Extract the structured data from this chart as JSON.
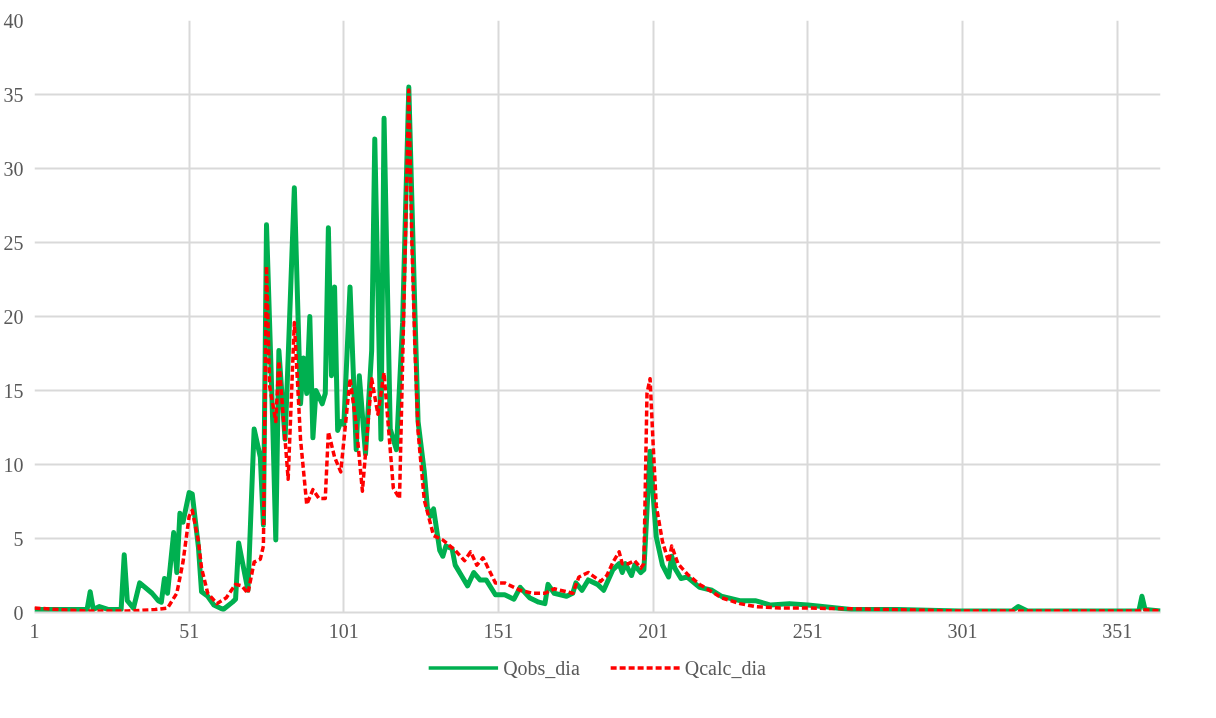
{
  "chart_data": {
    "type": "line",
    "xlim": [
      1,
      365
    ],
    "xticks": [
      1,
      51,
      101,
      151,
      201,
      251,
      301,
      351
    ],
    "ylim": [
      0,
      40
    ],
    "yticks": [
      0,
      5,
      10,
      15,
      20,
      25,
      30,
      35,
      40
    ],
    "grid": true,
    "legend": "bottom",
    "marker": "none",
    "series": [
      {
        "name": "Qobs_dia",
        "color": "#00b050",
        "line_style": "solid",
        "x": [
          1,
          18,
          19,
          20,
          22,
          25,
          29,
          30,
          31,
          33,
          35,
          39,
          41,
          42,
          43,
          44,
          46,
          47,
          48,
          49,
          51,
          52,
          54,
          55,
          57,
          59,
          62,
          65,
          66,
          67,
          70,
          72,
          74,
          75,
          76,
          78,
          79,
          80,
          82,
          83,
          85,
          87,
          88,
          89,
          90,
          91,
          92,
          94,
          95,
          96,
          97,
          98,
          99,
          100,
          101,
          103,
          105,
          106,
          108,
          110,
          111,
          113,
          114,
          116,
          118,
          120,
          122,
          124,
          125,
          127,
          128,
          129,
          130,
          132,
          133,
          134,
          136,
          137,
          139,
          141,
          143,
          145,
          147,
          150,
          153,
          155,
          156,
          158,
          161,
          164,
          166,
          167,
          169,
          173,
          175,
          176,
          178,
          180,
          183,
          185,
          188,
          190,
          191,
          192,
          194,
          195,
          197,
          198,
          200,
          201,
          202,
          204,
          206,
          207,
          208,
          210,
          212,
          216,
          220,
          223,
          229,
          234,
          239,
          245,
          251,
          265,
          280,
          300,
          317,
          319,
          322,
          340,
          358,
          359,
          360,
          365
        ],
        "values": [
          0.2,
          0.2,
          1.4,
          0.2,
          0.4,
          0.2,
          0.2,
          3.9,
          0.8,
          0.3,
          2.0,
          1.3,
          0.8,
          0.7,
          2.3,
          1.3,
          5.4,
          2.7,
          6.7,
          6.1,
          8.1,
          8.0,
          4.4,
          1.4,
          1.1,
          0.5,
          0.2,
          0.7,
          0.9,
          4.7,
          1.5,
          12.4,
          10.5,
          5.9,
          26.2,
          12.9,
          4.9,
          17.7,
          11.7,
          17.2,
          28.7,
          14.1,
          17.2,
          14.8,
          20.0,
          11.8,
          15.0,
          14.1,
          14.8,
          26.0,
          16.0,
          22.0,
          12.3,
          12.9,
          12.7,
          22.0,
          11.0,
          16.0,
          10.7,
          17.7,
          32.0,
          11.7,
          33.4,
          12.4,
          11.0,
          19.6,
          35.5,
          20.1,
          12.9,
          9.5,
          7.1,
          6.5,
          7.0,
          4.2,
          3.8,
          4.5,
          4.3,
          3.2,
          2.5,
          1.8,
          2.7,
          2.2,
          2.2,
          1.2,
          1.2,
          1.0,
          0.9,
          1.7,
          1.0,
          0.7,
          0.6,
          1.9,
          1.3,
          1.1,
          1.3,
          2.0,
          1.5,
          2.2,
          1.9,
          1.5,
          2.9,
          3.3,
          2.7,
          3.3,
          2.5,
          3.2,
          2.7,
          2.9,
          10.9,
          7.9,
          5.1,
          3.2,
          2.4,
          3.8,
          3.0,
          2.3,
          2.4,
          1.7,
          1.5,
          1.1,
          0.8,
          0.8,
          0.5,
          0.6,
          0.5,
          0.2,
          0.2,
          0.1,
          0.1,
          0.4,
          0.1,
          0.1,
          0.1,
          1.1,
          0.2,
          0.1
        ]
      },
      {
        "name": "Qcalc_dia",
        "color": "#ff0000",
        "line_style": "dashed",
        "x": [
          1,
          9,
          18,
          31,
          40,
          44,
          47,
          49,
          51,
          52,
          54,
          55,
          57,
          60,
          63,
          66,
          68,
          70,
          72,
          74,
          75,
          76,
          77,
          79,
          80,
          82,
          83,
          85,
          87,
          89,
          91,
          93,
          95,
          96,
          98,
          100,
          103,
          105,
          107,
          110,
          112,
          114,
          117,
          119,
          122,
          123,
          124,
          125,
          127,
          130,
          133,
          137,
          140,
          142,
          144,
          146,
          150,
          153,
          158,
          162,
          166,
          169,
          175,
          177,
          180,
          184,
          186,
          188,
          190,
          191,
          193,
          195,
          197,
          198,
          199,
          200,
          201,
          202,
          204,
          206,
          207,
          209,
          212,
          216,
          220,
          223,
          229,
          234,
          242,
          251,
          278,
          300,
          358,
          359,
          365
        ],
        "values": [
          0.3,
          0.2,
          0.1,
          0.1,
          0.2,
          0.3,
          1.3,
          3.4,
          6.5,
          6.9,
          4.8,
          3.0,
          1.3,
          0.6,
          1.0,
          1.9,
          1.8,
          1.3,
          3.4,
          3.6,
          4.5,
          23.4,
          15.3,
          12.9,
          17.0,
          11.7,
          9.0,
          19.6,
          11.7,
          7.3,
          8.3,
          7.7,
          7.7,
          12.2,
          10.5,
          9.5,
          15.8,
          12.7,
          8.2,
          15.8,
          13.4,
          16.2,
          8.4,
          7.7,
          35.3,
          25.0,
          17.7,
          12.2,
          7.6,
          5.2,
          4.9,
          4.2,
          3.5,
          4.1,
          3.2,
          3.7,
          2.0,
          2.0,
          1.5,
          1.3,
          1.3,
          1.6,
          1.3,
          2.4,
          2.7,
          2.1,
          2.5,
          3.4,
          4.1,
          3.3,
          3.3,
          3.5,
          3.0,
          3.3,
          14.8,
          15.8,
          11.3,
          7.2,
          4.8,
          3.4,
          4.5,
          3.3,
          2.6,
          1.9,
          1.4,
          1.0,
          0.6,
          0.4,
          0.3,
          0.3,
          0.2,
          0.1,
          0.1,
          0.2,
          0.1
        ]
      }
    ]
  }
}
